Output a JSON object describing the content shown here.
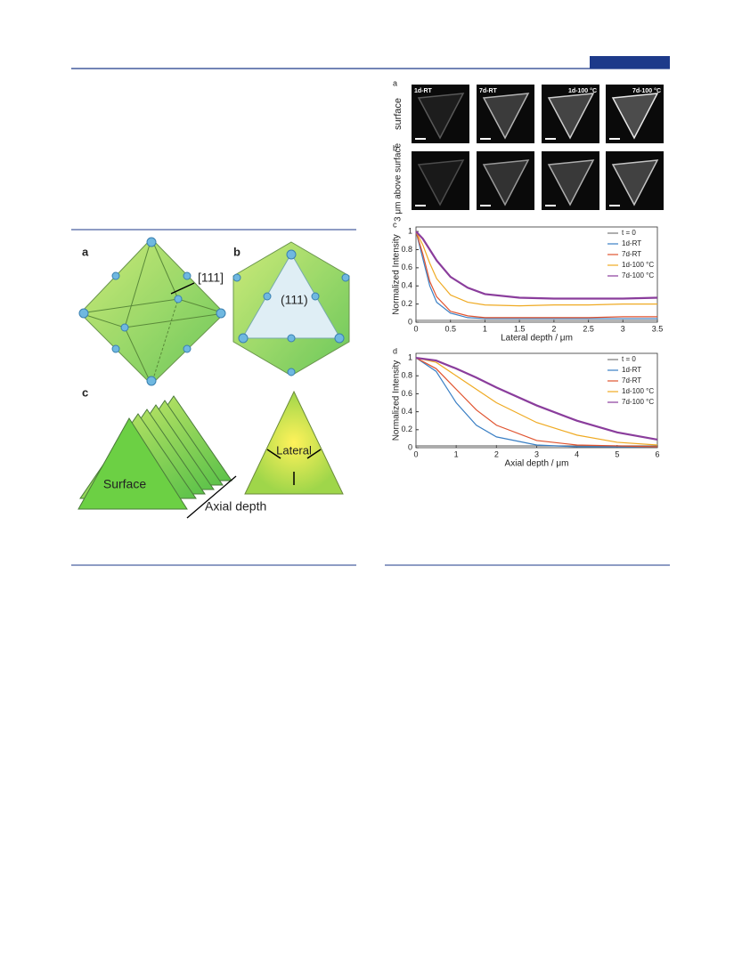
{
  "left_figure": {
    "panel_a": "a",
    "panel_b": "b",
    "panel_c": "c",
    "direction": "[111]",
    "plane": "(111)",
    "surface": "Surface",
    "lateral": "Lateral",
    "axial": "Axial depth"
  },
  "micrographs": {
    "panel_a": "a",
    "panel_b": "b",
    "row_a": "surface",
    "row_b": "3 μm above surface",
    "labels": [
      "1d-RT",
      "7d-RT",
      "1d-100 °C",
      "7d-100 °C"
    ]
  },
  "chart_data": [
    {
      "type": "line",
      "panel": "c",
      "x_label": "Lateral depth / μm",
      "y_label": "Normalized Intensity",
      "x": [
        0,
        0.1,
        0.2,
        0.3,
        0.5,
        0.75,
        1,
        1.5,
        2,
        2.5,
        3,
        3.5
      ],
      "xlim": [
        0,
        3.5
      ],
      "xticks": [
        0,
        0.5,
        1,
        1.5,
        2,
        2.5,
        3,
        3.5
      ],
      "ylim": [
        0,
        1.05
      ],
      "yticks": [
        0,
        0.2,
        0.4,
        0.6,
        0.8,
        1
      ],
      "series": [
        {
          "name": "t = 0",
          "color": "#777777",
          "values": [
            0.02,
            0.02,
            0.02,
            0.02,
            0.02,
            0.02,
            0.02,
            0.02,
            0.02,
            0.02,
            0.02,
            0.02
          ]
        },
        {
          "name": "1d-RT",
          "color": "#3a7fc4",
          "values": [
            1,
            0.7,
            0.4,
            0.22,
            0.1,
            0.05,
            0.04,
            0.04,
            0.04,
            0.04,
            0.04,
            0.04
          ]
        },
        {
          "name": "7d-RT",
          "color": "#e0532f",
          "values": [
            1,
            0.75,
            0.45,
            0.28,
            0.12,
            0.07,
            0.05,
            0.05,
            0.05,
            0.05,
            0.06,
            0.06
          ]
        },
        {
          "name": "1d-100 °C",
          "color": "#efaa22",
          "values": [
            1,
            0.85,
            0.65,
            0.48,
            0.3,
            0.22,
            0.19,
            0.18,
            0.19,
            0.19,
            0.2,
            0.2
          ]
        },
        {
          "name": "7d-100 °C",
          "color": "#8a3d9c",
          "values": [
            1,
            0.92,
            0.8,
            0.68,
            0.5,
            0.38,
            0.31,
            0.27,
            0.26,
            0.26,
            0.26,
            0.27
          ]
        }
      ]
    },
    {
      "type": "line",
      "panel": "d",
      "x_label": "Axial depth / μm",
      "y_label": "Normalized Intensity",
      "x": [
        0,
        0.5,
        1,
        1.5,
        2,
        3,
        4,
        5,
        6
      ],
      "xlim": [
        0,
        6
      ],
      "xticks": [
        0,
        1,
        2,
        3,
        4,
        5,
        6
      ],
      "ylim": [
        0,
        1.05
      ],
      "yticks": [
        0,
        0.2,
        0.4,
        0.6,
        0.8,
        1
      ],
      "series": [
        {
          "name": "t = 0",
          "color": "#777777",
          "values": [
            0.02,
            0.02,
            0.02,
            0.02,
            0.02,
            0.02,
            0.02,
            0.02,
            0.02
          ]
        },
        {
          "name": "1d-RT",
          "color": "#3a7fc4",
          "values": [
            1,
            0.85,
            0.5,
            0.25,
            0.12,
            0.03,
            0.01,
            0.01,
            0.01
          ]
        },
        {
          "name": "7d-RT",
          "color": "#e0532f",
          "values": [
            1,
            0.88,
            0.65,
            0.42,
            0.25,
            0.08,
            0.03,
            0.02,
            0.01
          ]
        },
        {
          "name": "1d-100 °C",
          "color": "#efaa22",
          "values": [
            1,
            0.95,
            0.8,
            0.65,
            0.5,
            0.28,
            0.14,
            0.06,
            0.03
          ]
        },
        {
          "name": "7d-100 °C",
          "color": "#8a3d9c",
          "values": [
            1,
            0.97,
            0.88,
            0.78,
            0.67,
            0.47,
            0.3,
            0.17,
            0.09
          ]
        }
      ]
    }
  ]
}
